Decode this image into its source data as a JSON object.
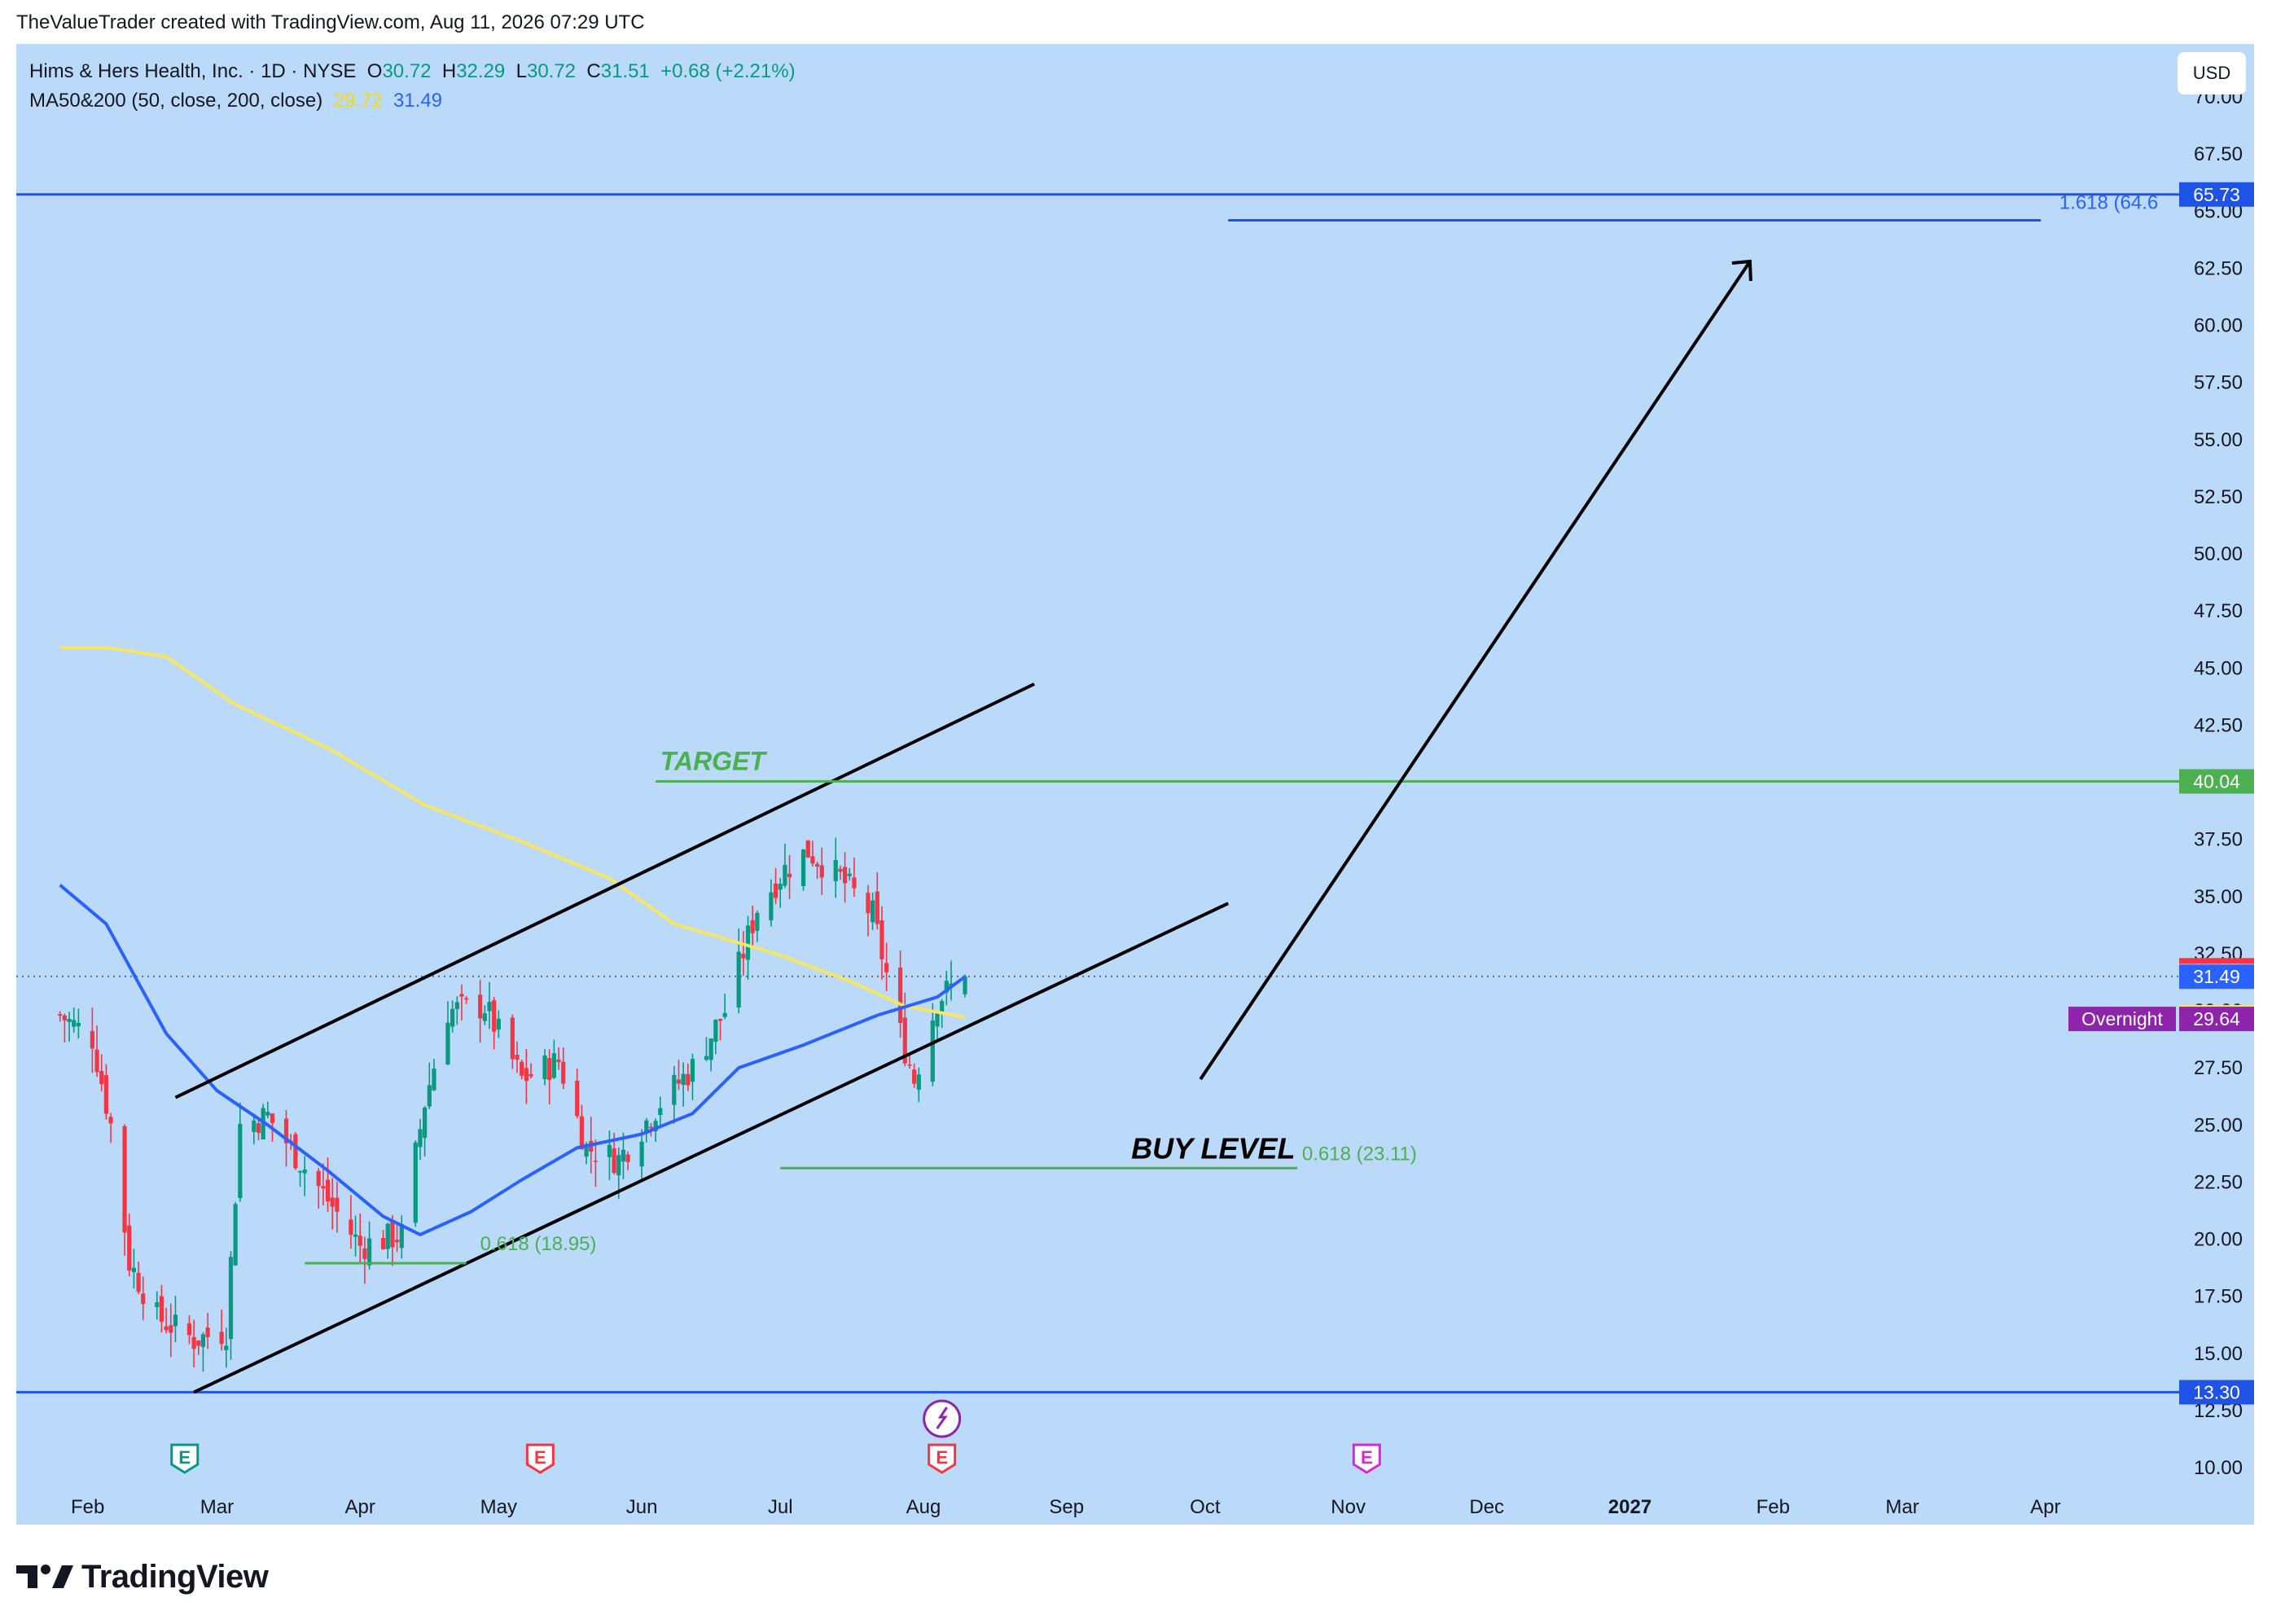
{
  "caption": "TheValueTrader created with TradingView.com, Aug 11, 2026 07:29 UTC",
  "legend": {
    "symbol": "Hims & Hers Health, Inc. · 1D · NYSE",
    "o_label": "O",
    "o_value": "30.72",
    "h_label": "H",
    "h_value": "32.29",
    "l_label": "L",
    "l_value": "30.72",
    "c_label": "C",
    "c_value": "31.51",
    "change": "+0.68 (+2.21%)",
    "indicator": "MA50&200 (50, close, 200, close)",
    "ma200_value": "29.72",
    "ma50_value": "31.49"
  },
  "currency": "USD",
  "brand": "TradingView",
  "colors": {
    "background": "#bbdafa",
    "up": "#089981",
    "down": "#f23645",
    "ma50": "#2962ff",
    "ma200": "#f5e663",
    "fib": "#4caf50",
    "level_blue": "#1e53e5"
  },
  "chart_data": {
    "type": "candlestick",
    "y_axis": {
      "range": [
        10,
        70
      ],
      "ticks": [
        "10.00",
        "12.50",
        "15.00",
        "17.50",
        "20.00",
        "22.50",
        "25.00",
        "27.50",
        "30.00",
        "32.50",
        "35.00",
        "37.50",
        "40.00",
        "42.50",
        "45.00",
        "47.50",
        "50.00",
        "52.50",
        "55.00",
        "57.50",
        "60.00",
        "62.50",
        "65.00",
        "67.50",
        "70.00"
      ]
    },
    "x_axis": {
      "ticks": [
        {
          "label": "Feb",
          "bold": false
        },
        {
          "label": "Mar",
          "bold": false
        },
        {
          "label": "Apr",
          "bold": false
        },
        {
          "label": "May",
          "bold": false
        },
        {
          "label": "Jun",
          "bold": false
        },
        {
          "label": "Jul",
          "bold": false
        },
        {
          "label": "Aug",
          "bold": false
        },
        {
          "label": "Sep",
          "bold": false
        },
        {
          "label": "Oct",
          "bold": false
        },
        {
          "label": "Nov",
          "bold": false
        },
        {
          "label": "Dec",
          "bold": false
        },
        {
          "label": "2027",
          "bold": true
        },
        {
          "label": "Feb",
          "bold": false
        },
        {
          "label": "Mar",
          "bold": false
        },
        {
          "label": "Apr",
          "bold": false
        }
      ]
    },
    "price_series_anchors": [
      {
        "date": "2026-01-26",
        "close": 29.8
      },
      {
        "date": "2026-02-02",
        "close": 28.8
      },
      {
        "date": "2026-02-06",
        "close": 25.0
      },
      {
        "date": "2026-02-10",
        "close": 19.0
      },
      {
        "date": "2026-02-16",
        "close": 16.6
      },
      {
        "date": "2026-02-24",
        "close": 15.6
      },
      {
        "date": "2026-03-03",
        "close": 16.0
      },
      {
        "date": "2026-03-06",
        "close": 25.0
      },
      {
        "date": "2026-03-12",
        "close": 25.4
      },
      {
        "date": "2026-03-24",
        "close": 22.0
      },
      {
        "date": "2026-04-01",
        "close": 19.7
      },
      {
        "date": "2026-04-10",
        "close": 20.2
      },
      {
        "date": "2026-04-15",
        "close": 26.0
      },
      {
        "date": "2026-04-20",
        "close": 30.0
      },
      {
        "date": "2026-04-28",
        "close": 30.2
      },
      {
        "date": "2026-05-06",
        "close": 27.0
      },
      {
        "date": "2026-05-14",
        "close": 27.8
      },
      {
        "date": "2026-05-20",
        "close": 24.0
      },
      {
        "date": "2026-05-27",
        "close": 23.5
      },
      {
        "date": "2026-06-05",
        "close": 26.0
      },
      {
        "date": "2026-06-12",
        "close": 27.5
      },
      {
        "date": "2026-06-19",
        "close": 30.0
      },
      {
        "date": "2026-06-26",
        "close": 34.5
      },
      {
        "date": "2026-07-02",
        "close": 36.2
      },
      {
        "date": "2026-07-07",
        "close": 37.0
      },
      {
        "date": "2026-07-14",
        "close": 35.8
      },
      {
        "date": "2026-07-21",
        "close": 34.2
      },
      {
        "date": "2026-07-27",
        "close": 29.0
      },
      {
        "date": "2026-07-30",
        "close": 27.0
      },
      {
        "date": "2026-08-04",
        "close": 30.5
      },
      {
        "date": "2026-08-10",
        "close": 31.51
      }
    ],
    "ma50": [
      {
        "date": "2026-01-26",
        "value": 35.5
      },
      {
        "date": "2026-02-05",
        "value": 33.8
      },
      {
        "date": "2026-02-18",
        "value": 29.0
      },
      {
        "date": "2026-03-01",
        "value": 26.5
      },
      {
        "date": "2026-03-12",
        "value": 25.0
      },
      {
        "date": "2026-03-25",
        "value": 23.0
      },
      {
        "date": "2026-04-06",
        "value": 21.0
      },
      {
        "date": "2026-04-14",
        "value": 20.2
      },
      {
        "date": "2026-04-25",
        "value": 21.2
      },
      {
        "date": "2026-05-06",
        "value": 22.6
      },
      {
        "date": "2026-05-18",
        "value": 24.0
      },
      {
        "date": "2026-06-01",
        "value": 24.6
      },
      {
        "date": "2026-06-12",
        "value": 25.5
      },
      {
        "date": "2026-06-22",
        "value": 27.5
      },
      {
        "date": "2026-07-06",
        "value": 28.5
      },
      {
        "date": "2026-07-22",
        "value": 29.8
      },
      {
        "date": "2026-08-04",
        "value": 30.6
      },
      {
        "date": "2026-08-10",
        "value": 31.49
      }
    ],
    "ma200": [
      {
        "date": "2026-01-26",
        "value": 45.9
      },
      {
        "date": "2026-02-05",
        "value": 45.9
      },
      {
        "date": "2026-02-18",
        "value": 45.5
      },
      {
        "date": "2026-03-05",
        "value": 43.4
      },
      {
        "date": "2026-03-25",
        "value": 41.5
      },
      {
        "date": "2026-04-15",
        "value": 39.0
      },
      {
        "date": "2026-05-06",
        "value": 37.4
      },
      {
        "date": "2026-05-25",
        "value": 35.8
      },
      {
        "date": "2026-06-08",
        "value": 33.8
      },
      {
        "date": "2026-06-30",
        "value": 32.5
      },
      {
        "date": "2026-07-16",
        "value": 31.3
      },
      {
        "date": "2026-07-28",
        "value": 30.2
      },
      {
        "date": "2026-08-10",
        "value": 29.72
      }
    ],
    "price_labels": [
      {
        "text": "65.73",
        "value": 65.73,
        "bg": "#1e53e5",
        "fg": "#ffffff"
      },
      {
        "text": "40.04",
        "value": 40.04,
        "bg": "#4caf50",
        "fg": "#ffffff"
      },
      {
        "text": "31.77",
        "value": 31.77,
        "bg": "#f23645",
        "fg": "#ffffff"
      },
      {
        "text": "31.51",
        "value": 31.51,
        "bg": "#ffffff",
        "fg": "#131722"
      },
      {
        "text": "31.49",
        "value": 31.49,
        "bg": "#2962ff",
        "fg": "#ffffff"
      },
      {
        "text": "29.72",
        "value": 29.72,
        "bg": "#f5e663",
        "fg": "#131722"
      },
      {
        "text": "29.64",
        "value": 29.64,
        "bg": "#8e24aa",
        "fg": "#ffffff"
      },
      {
        "text": "13.30",
        "value": 13.3,
        "bg": "#1e53e5",
        "fg": "#ffffff"
      }
    ],
    "overnight_label": "Overnight",
    "horizontal_levels": [
      {
        "value": 65.73
      },
      {
        "value": 13.3
      }
    ],
    "annotations": {
      "target_label": "TARGET",
      "target_value": 40.04,
      "buy_label": "BUY LEVEL",
      "fib_buy": "0.618 (23.11)",
      "fib_buy_value": 23.11,
      "fib_low": "0.618 (18.95)",
      "fib_low_value": 18.95,
      "fib_ext": "1.618 (64.6",
      "fib_ext_value": 64.6,
      "earnings_marker": "E"
    }
  }
}
